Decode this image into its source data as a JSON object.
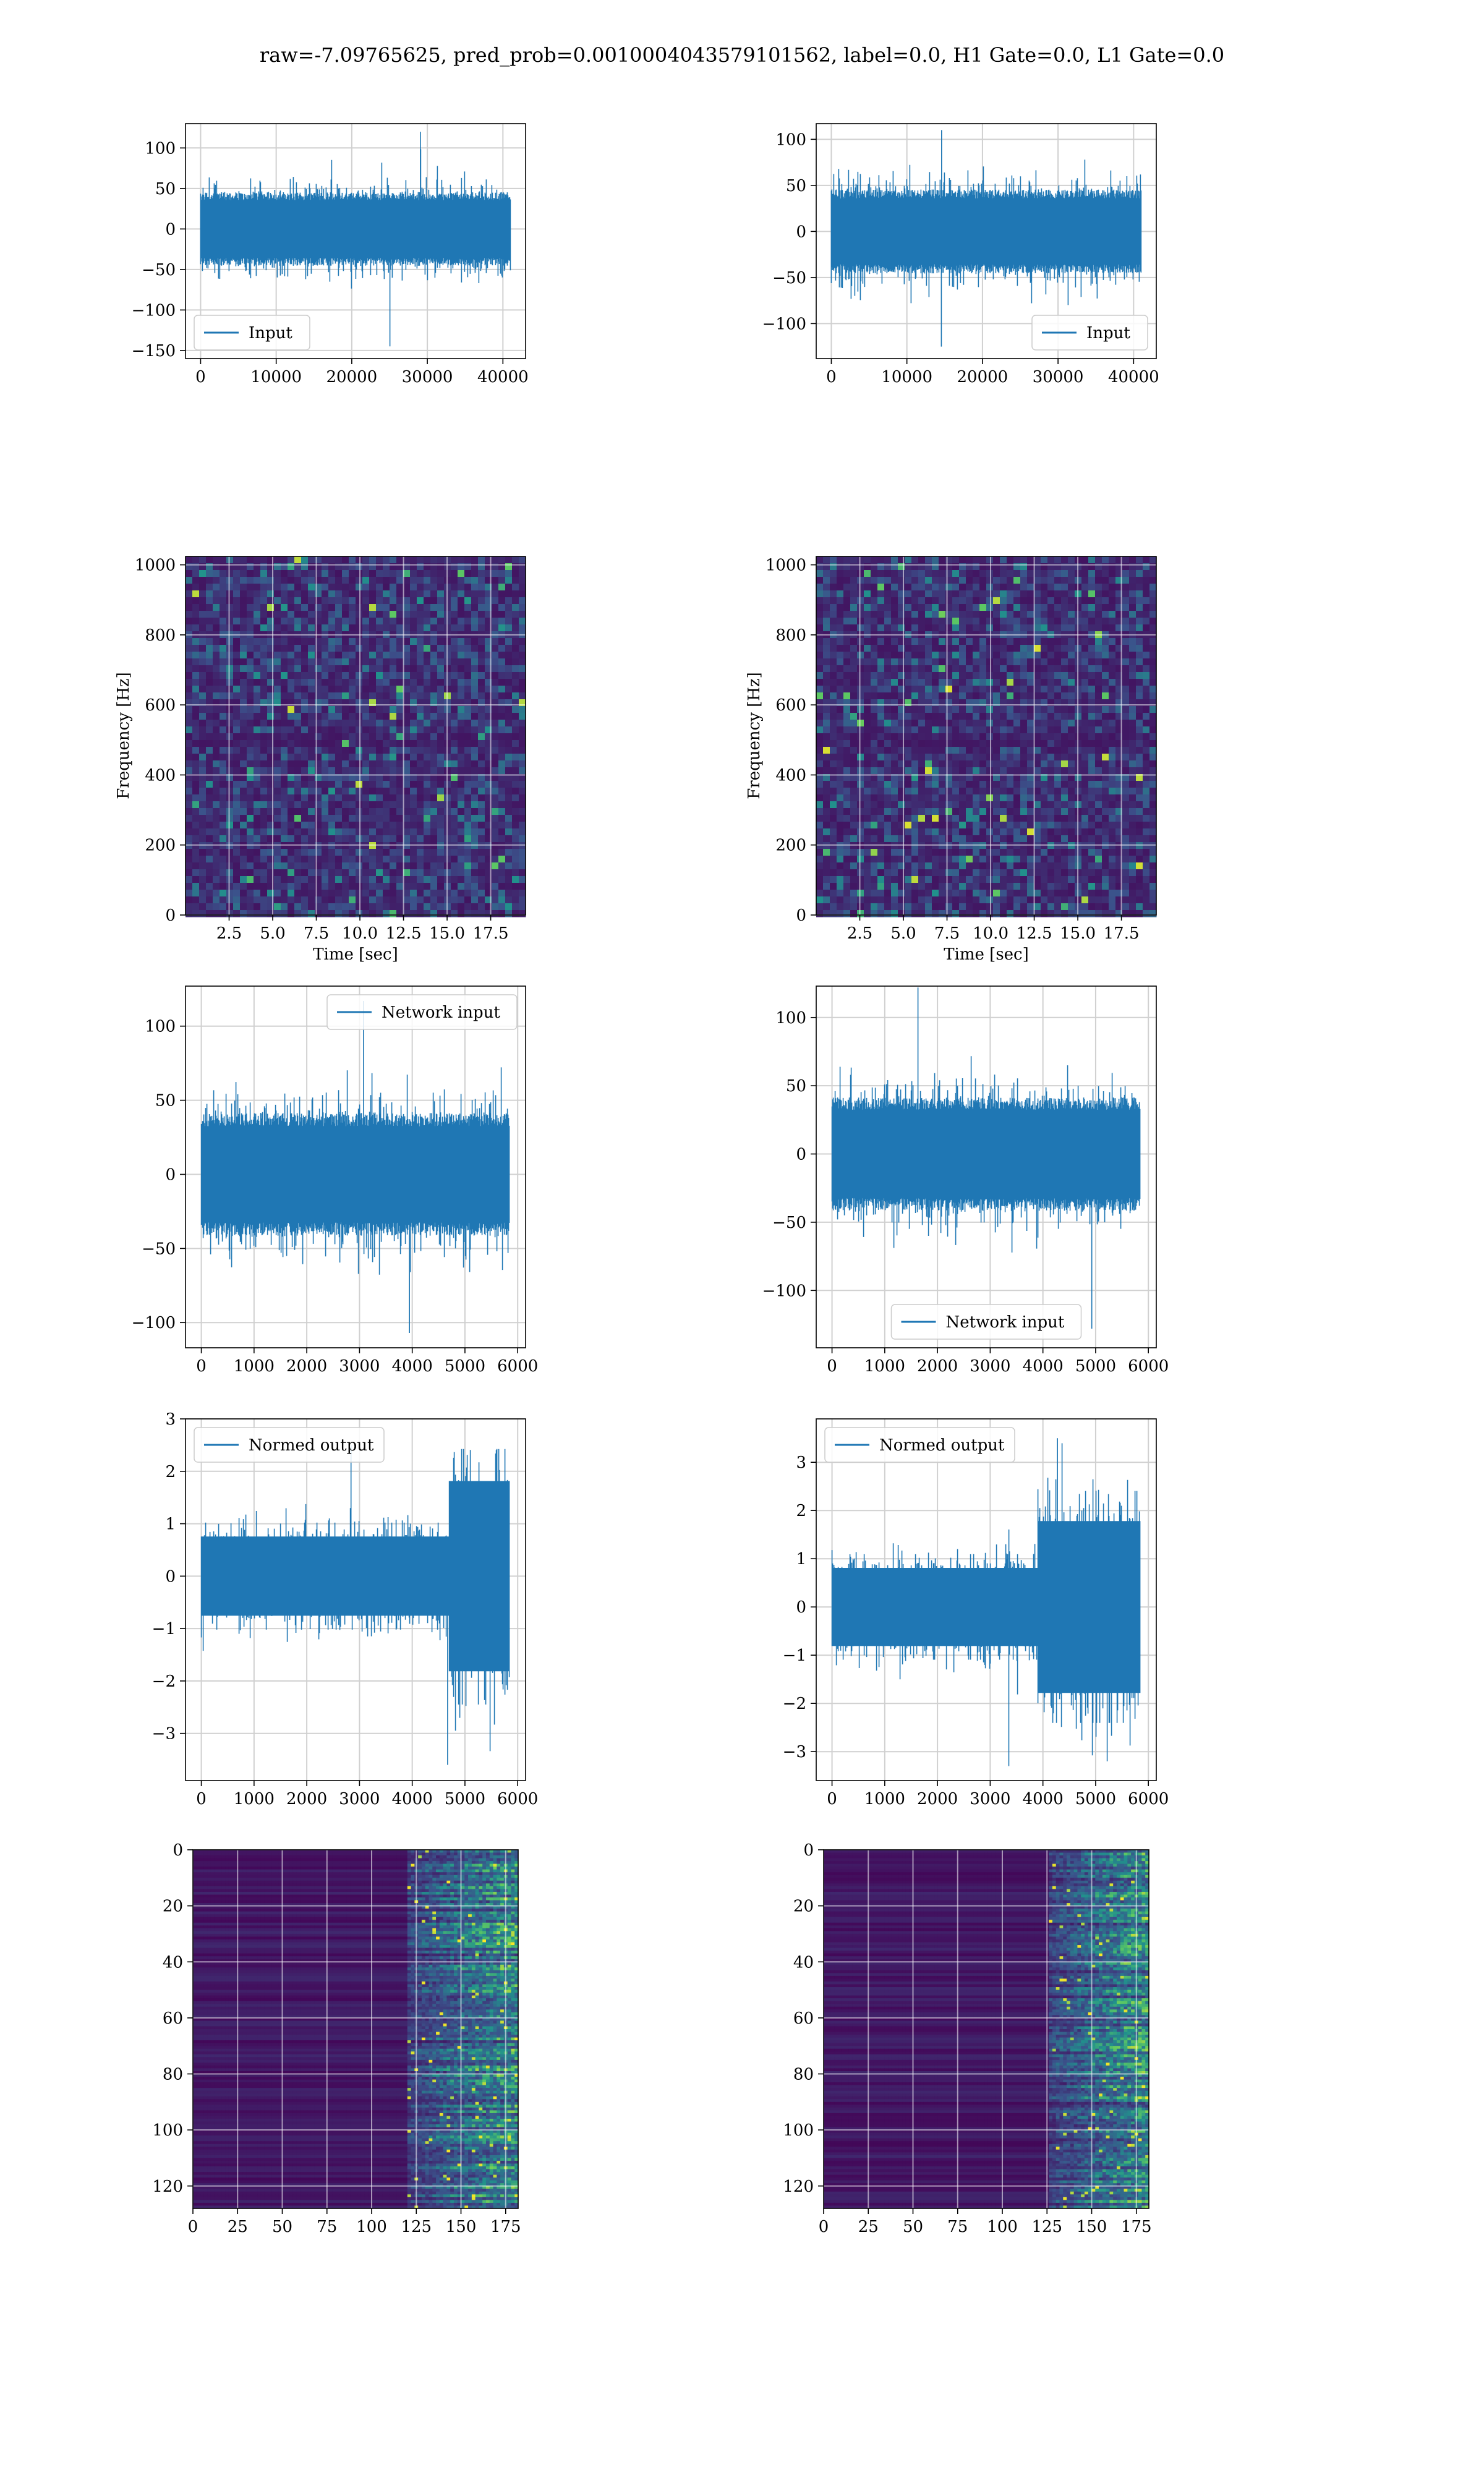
{
  "figure": {
    "title": "raw=-7.09765625, pred_prob=0.0010004043579101562, label=0.0, H1 Gate=0.0, L1 Gate=0.0"
  },
  "colors": {
    "line": "#1f77b4",
    "grid": "#d0d0d0",
    "viridis_low": "#440154",
    "viridis_mid": "#21918c",
    "viridis_high": "#fde725"
  },
  "chart_data": [
    {
      "id": "p1",
      "type": "line",
      "panel": "row1-left",
      "series": [
        {
          "name": "Input"
        }
      ],
      "xlim": [
        -2000,
        43000
      ],
      "ylim": [
        -160,
        130
      ],
      "xticks": [
        0,
        10000,
        20000,
        30000,
        40000
      ],
      "yticks": [
        -150,
        -100,
        -50,
        0,
        50,
        100
      ],
      "n": 40960,
      "amplitude": 22,
      "extreme": [
        120,
        -145
      ],
      "legend": "lower left",
      "grid": true
    },
    {
      "id": "p2",
      "type": "line",
      "panel": "row1-right",
      "series": [
        {
          "name": "Input"
        }
      ],
      "xlim": [
        -2000,
        43000
      ],
      "ylim": [
        -138,
        117
      ],
      "xticks": [
        0,
        10000,
        20000,
        30000,
        40000
      ],
      "yticks": [
        -100,
        -50,
        0,
        50,
        100
      ],
      "n": 40960,
      "amplitude": 22,
      "extreme": [
        110,
        -125
      ],
      "legend": "lower right",
      "grid": true
    },
    {
      "id": "p3",
      "type": "heatmap",
      "panel": "row2-left",
      "xlabel": "Time [sec]",
      "ylabel": "Frequency [Hz]",
      "xlim": [
        0,
        19.5
      ],
      "ylim": [
        0,
        1024
      ],
      "xticks": [
        2.5,
        5.0,
        7.5,
        10.0,
        12.5,
        15.0,
        17.5
      ],
      "xtick_labels": [
        "2.5",
        "5.0",
        "7.5",
        "10.0",
        "12.5",
        "15.0",
        "17.5"
      ],
      "yticks": [
        0,
        200,
        400,
        600,
        800,
        1000
      ],
      "colormap": "viridis",
      "dark_band_hz": 512,
      "grid": true
    },
    {
      "id": "p4",
      "type": "heatmap",
      "panel": "row2-right",
      "xlabel": "Time [sec]",
      "ylabel": "Frequency [Hz]",
      "xlim": [
        0,
        19.5
      ],
      "ylim": [
        0,
        1024
      ],
      "xticks": [
        2.5,
        5.0,
        7.5,
        10.0,
        12.5,
        15.0,
        17.5
      ],
      "xtick_labels": [
        "2.5",
        "5.0",
        "7.5",
        "10.0",
        "12.5",
        "15.0",
        "17.5"
      ],
      "yticks": [
        0,
        200,
        400,
        600,
        800,
        1000
      ],
      "colormap": "viridis",
      "dark_band_hz": 512,
      "grid": true
    },
    {
      "id": "p5",
      "type": "line",
      "panel": "row3-left",
      "series": [
        {
          "name": "Network input"
        }
      ],
      "xlim": [
        -300,
        6150
      ],
      "ylim": [
        -117,
        127
      ],
      "xticks": [
        0,
        1000,
        2000,
        3000,
        4000,
        5000,
        6000
      ],
      "yticks": [
        -100,
        -50,
        0,
        50,
        100
      ],
      "n": 5840,
      "amplitude": 20,
      "extreme": [
        117,
        -107
      ],
      "legend": "upper right",
      "grid": true
    },
    {
      "id": "p6",
      "type": "line",
      "panel": "row3-right",
      "series": [
        {
          "name": "Network input"
        }
      ],
      "xlim": [
        -300,
        6150
      ],
      "ylim": [
        -142,
        123
      ],
      "xticks": [
        0,
        1000,
        2000,
        3000,
        4000,
        5000,
        6000
      ],
      "yticks": [
        -100,
        -50,
        0,
        50,
        100
      ],
      "n": 5840,
      "amplitude": 20,
      "extreme": [
        122,
        -128
      ],
      "legend": "lower center",
      "grid": true
    },
    {
      "id": "p7",
      "type": "line",
      "panel": "row4-left",
      "series": [
        {
          "name": "Normed output"
        }
      ],
      "xlim": [
        -300,
        6150
      ],
      "ylim": [
        -3.9,
        3.0
      ],
      "xticks": [
        0,
        1000,
        2000,
        3000,
        4000,
        5000,
        6000
      ],
      "yticks": [
        -3,
        -2,
        -1,
        0,
        1,
        2,
        3
      ],
      "n": 5840,
      "amplitude": 0.42,
      "burst_start": 4700,
      "burst_gain": 2.4,
      "extreme": [
        2.5,
        -3.6
      ],
      "legend": "upper left",
      "grid": true
    },
    {
      "id": "p8",
      "type": "line",
      "panel": "row4-right",
      "series": [
        {
          "name": "Normed output"
        }
      ],
      "xlim": [
        -300,
        6150
      ],
      "ylim": [
        -3.6,
        3.9
      ],
      "xticks": [
        0,
        1000,
        2000,
        3000,
        4000,
        5000,
        6000
      ],
      "yticks": [
        -3,
        -2,
        -1,
        0,
        1,
        2,
        3
      ],
      "n": 5840,
      "amplitude": 0.45,
      "burst_start": 3900,
      "burst_gain": 2.2,
      "extreme": [
        3.5,
        -3.3
      ],
      "legend": "upper left",
      "grid": true
    },
    {
      "id": "p9",
      "type": "heatmap",
      "panel": "row5-left",
      "xlim": [
        0,
        182
      ],
      "ylim": [
        128,
        0
      ],
      "xticks": [
        0,
        25,
        50,
        75,
        100,
        125,
        150,
        175
      ],
      "yticks": [
        0,
        20,
        40,
        60,
        80,
        100,
        120
      ],
      "colormap": "viridis",
      "bright_from_col": 120,
      "grid": true
    },
    {
      "id": "p10",
      "type": "heatmap",
      "panel": "row5-right",
      "xlim": [
        0,
        182
      ],
      "ylim": [
        128,
        0
      ],
      "xticks": [
        0,
        25,
        50,
        75,
        100,
        125,
        150,
        175
      ],
      "yticks": [
        0,
        20,
        40,
        60,
        80,
        100,
        120
      ],
      "colormap": "viridis",
      "bright_from_col": 125,
      "grid": true
    }
  ]
}
